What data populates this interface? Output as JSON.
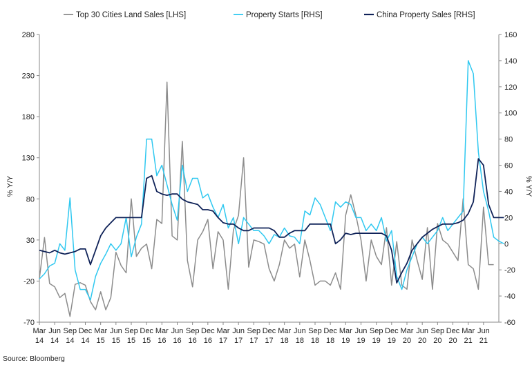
{
  "chart_data": {
    "type": "line",
    "legend_position": "top",
    "grid": false,
    "left_axis": {
      "label": "% Y/Y",
      "min": -70,
      "max": 280,
      "ticks": [
        280,
        230,
        180,
        130,
        80,
        30,
        -20,
        -70
      ]
    },
    "right_axis": {
      "label": "% Y/Y",
      "min": -60,
      "max": 160,
      "ticks": [
        160,
        140,
        120,
        100,
        80,
        60,
        40,
        20,
        0,
        -20,
        -40,
        -60
      ]
    },
    "x_ticks": [
      {
        "month": "Mar",
        "year": "14"
      },
      {
        "month": "Jun",
        "year": "14"
      },
      {
        "month": "Sep",
        "year": "14"
      },
      {
        "month": "Dec",
        "year": "14"
      },
      {
        "month": "Mar",
        "year": "15"
      },
      {
        "month": "Jun",
        "year": "15"
      },
      {
        "month": "Sep",
        "year": "15"
      },
      {
        "month": "Dec",
        "year": "15"
      },
      {
        "month": "Mar",
        "year": "16"
      },
      {
        "month": "Jun",
        "year": "16"
      },
      {
        "month": "Sep",
        "year": "16"
      },
      {
        "month": "Dec",
        "year": "16"
      },
      {
        "month": "Mar",
        "year": "17"
      },
      {
        "month": "Jun",
        "year": "17"
      },
      {
        "month": "Sep",
        "year": "17"
      },
      {
        "month": "Dec",
        "year": "17"
      },
      {
        "month": "Mar",
        "year": "18"
      },
      {
        "month": "Jun",
        "year": "18"
      },
      {
        "month": "Sep",
        "year": "18"
      },
      {
        "month": "Dec",
        "year": "18"
      },
      {
        "month": "Mar",
        "year": "19"
      },
      {
        "month": "Jun",
        "year": "19"
      },
      {
        "month": "Sep",
        "year": "19"
      },
      {
        "month": "Dec",
        "year": "19"
      },
      {
        "month": "Mar",
        "year": "20"
      },
      {
        "month": "Jun",
        "year": "20"
      },
      {
        "month": "Sep",
        "year": "20"
      },
      {
        "month": "Dec",
        "year": "20"
      },
      {
        "month": "Mar",
        "year": "21"
      },
      {
        "month": "Jun",
        "year": "21"
      }
    ],
    "x_start": "Mar 2014",
    "series": [
      {
        "name": "Top 30 Cities Land Sales [LHS]",
        "axis": "left",
        "color": "#8c8c8c",
        "values": [
          -17,
          33,
          -23,
          -27,
          -40,
          -35,
          -63,
          -24,
          -22,
          -25,
          -45,
          -55,
          -33,
          -55,
          -40,
          15,
          -1,
          -10,
          80,
          10,
          20,
          25,
          -5,
          55,
          50,
          222,
          35,
          30,
          150,
          5,
          -27,
          30,
          40,
          55,
          -5,
          40,
          30,
          -30,
          42,
          60,
          130,
          -3,
          30,
          28,
          25,
          -5,
          -20,
          0,
          30,
          20,
          25,
          -15,
          30,
          5,
          -25,
          -20,
          -20,
          -25,
          -10,
          -30,
          60,
          85,
          60,
          30,
          -20,
          30,
          10,
          0,
          45,
          -25,
          28,
          -25,
          -30,
          30,
          5,
          -18,
          45,
          -30,
          50,
          30,
          25,
          15,
          5,
          80,
          0,
          -5,
          -30,
          70,
          0,
          0
        ]
      },
      {
        "name": "Property Starts [RHS]",
        "axis": "right",
        "color": "#2fc8f0",
        "values": [
          -27,
          -23,
          -17,
          -15,
          0,
          -5,
          35,
          -20,
          -35,
          -35,
          -43,
          -25,
          -15,
          -8,
          0,
          -5,
          0,
          20,
          -10,
          5,
          15,
          80,
          80,
          52,
          60,
          45,
          30,
          18,
          60,
          40,
          50,
          50,
          35,
          38,
          28,
          20,
          30,
          12,
          20,
          0,
          20,
          15,
          10,
          10,
          6,
          0,
          7,
          5,
          12,
          6,
          5,
          0,
          25,
          22,
          35,
          30,
          20,
          10,
          32,
          28,
          32,
          30,
          20,
          20,
          10,
          15,
          10,
          20,
          2,
          10,
          -25,
          -35,
          -20,
          -10,
          0,
          5,
          0,
          5,
          10,
          20,
          10,
          15,
          20,
          25,
          140,
          130,
          70,
          40,
          25,
          5,
          2,
          0
        ]
      },
      {
        "name": "China Property Sales [RHS]",
        "axis": "right",
        "color": "#0f2258",
        "values": [
          -5,
          -6,
          -7,
          -5,
          -7,
          -8,
          -7,
          -6,
          -4,
          -4,
          -16,
          -5,
          6,
          12,
          16,
          20,
          20,
          20,
          20,
          20,
          20,
          50,
          52,
          40,
          38,
          37,
          38,
          38,
          34,
          32,
          31,
          30,
          26,
          26,
          25,
          20,
          16,
          15,
          15,
          12,
          10,
          10,
          12,
          12,
          12,
          12,
          10,
          5,
          5,
          8,
          10,
          10,
          10,
          15,
          15,
          15,
          15,
          15,
          0,
          3,
          8,
          7,
          8,
          8,
          8,
          8,
          8,
          8,
          6,
          -5,
          -30,
          -22,
          -15,
          -5,
          0,
          5,
          8,
          11,
          13,
          15,
          15,
          15,
          16,
          18,
          23,
          32,
          65,
          60,
          30,
          20,
          20,
          20
        ]
      }
    ]
  },
  "source": "Source: Bloomberg"
}
